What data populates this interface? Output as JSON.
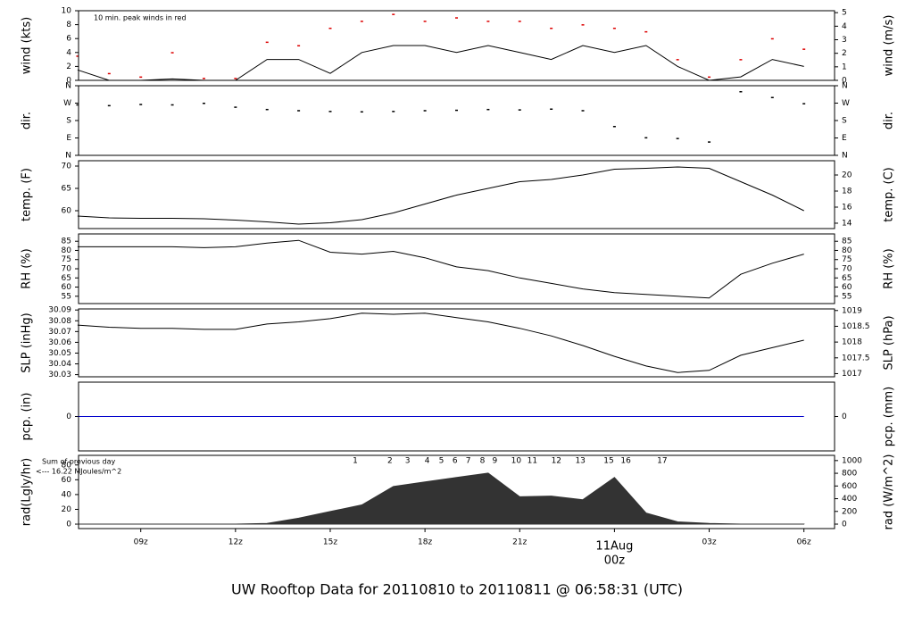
{
  "title": "UW Rooftop Data for 20110810  to  20110811 @ 06:58:31  (UTC)",
  "title_color": "#0000cc",
  "chart_data": [
    {
      "type": "line",
      "y_label": "wind (kts)",
      "y2_label": "wind (m/s)",
      "annotation": "10 min. peak winds in red",
      "annotation_color": "#dd0000",
      "xlim": [
        7.03,
        30.97
      ],
      "x": [
        7,
        8,
        9,
        10,
        11,
        12,
        13,
        14,
        15,
        16,
        17,
        18,
        19,
        20,
        21,
        22,
        23,
        24,
        25,
        26,
        27,
        28,
        29,
        30
      ],
      "series": [
        {
          "name": "wind",
          "color": "#000000",
          "style": "line",
          "values": [
            1.5,
            0,
            0,
            0.2,
            0,
            0,
            3,
            3,
            1,
            4,
            5,
            5,
            4,
            5,
            4,
            3,
            5,
            4,
            5,
            2,
            0,
            0.5,
            3,
            2
          ]
        },
        {
          "name": "peak",
          "color": "#dd0000",
          "style": "points",
          "values": [
            3.5,
            1,
            0.5,
            4,
            0.3,
            0.3,
            5.5,
            5,
            7.5,
            8.5,
            9.5,
            8.5,
            9,
            8.5,
            8.5,
            7.5,
            8,
            7.5,
            7,
            3,
            0.5,
            3,
            6,
            4.5
          ]
        }
      ],
      "ylim": [
        0,
        10
      ],
      "yticks": [
        0,
        2,
        4,
        6,
        8,
        10
      ],
      "y2lim": [
        0,
        5.144
      ],
      "y2ticks": [
        0,
        1,
        2,
        3,
        4,
        5
      ]
    },
    {
      "type": "scatter",
      "y_label": "dir.",
      "y2_label": "dir.",
      "xlim": [
        7.03,
        30.97
      ],
      "x": [
        7,
        8,
        9,
        10,
        11,
        12,
        13,
        14,
        15,
        16,
        17,
        18,
        19,
        20,
        21,
        22,
        23,
        24,
        25,
        26,
        27,
        28,
        29,
        30
      ],
      "series": [
        {
          "name": "direction",
          "color": "#000000",
          "style": "points",
          "values": [
            262,
            258,
            264,
            262,
            270,
            250,
            238,
            232,
            228,
            226,
            228,
            232,
            234,
            238,
            236,
            240,
            232,
            150,
            92,
            88,
            70,
            330,
            300,
            268
          ]
        }
      ],
      "ylim": [
        0,
        360
      ],
      "yticks": [
        {
          "value": 0,
          "label": "N"
        },
        {
          "value": 90,
          "label": "E"
        },
        {
          "value": 180,
          "label": "S"
        },
        {
          "value": 270,
          "label": "W"
        },
        {
          "value": 360,
          "label": "N"
        }
      ],
      "y2lim": [
        0,
        360
      ],
      "y2ticks": [
        {
          "value": 0,
          "label": "N"
        },
        {
          "value": 90,
          "label": "E"
        },
        {
          "value": 180,
          "label": "S"
        },
        {
          "value": 270,
          "label": "W"
        },
        {
          "value": 360,
          "label": "N"
        }
      ]
    },
    {
      "type": "line",
      "y_label": "temp. (F)",
      "y2_label": "temp. (C)",
      "xlim": [
        7.03,
        30.97
      ],
      "x": [
        7,
        8,
        9,
        10,
        11,
        12,
        13,
        14,
        15,
        16,
        17,
        18,
        19,
        20,
        21,
        22,
        23,
        24,
        25,
        26,
        27,
        28,
        29,
        30
      ],
      "series": [
        {
          "name": "temperature",
          "color": "#000000",
          "style": "line",
          "values": [
            58.8,
            58.4,
            58.3,
            58.3,
            58.2,
            57.9,
            57.5,
            57.0,
            57.3,
            58.0,
            59.5,
            61.5,
            63.5,
            65.0,
            66.5,
            67.0,
            68.0,
            69.3,
            69.5,
            69.8,
            69.5,
            66.5,
            63.5,
            60.0
          ]
        }
      ],
      "ylim": [
        56,
        71.2
      ],
      "yticks": [
        60,
        65,
        70
      ],
      "y2lim": [
        13.33,
        21.78
      ],
      "y2ticks": [
        14,
        16,
        18,
        20
      ]
    },
    {
      "type": "line",
      "y_label": "RH (%)",
      "y2_label": "RH (%)",
      "xlim": [
        7.03,
        30.97
      ],
      "x": [
        7,
        8,
        9,
        10,
        11,
        12,
        13,
        14,
        15,
        16,
        17,
        18,
        19,
        20,
        21,
        22,
        23,
        24,
        25,
        26,
        27,
        28,
        29,
        30
      ],
      "series": [
        {
          "name": "rh",
          "color": "#000000",
          "style": "line",
          "values": [
            82,
            82,
            82,
            82,
            81.5,
            82,
            84,
            85.5,
            79,
            78,
            79.5,
            76,
            71,
            69,
            65,
            62,
            59,
            57,
            56,
            55,
            54,
            67,
            73,
            78
          ]
        }
      ],
      "ylim": [
        51,
        89
      ],
      "yticks": [
        55,
        60,
        65,
        70,
        75,
        80,
        85
      ],
      "y2lim": [
        51,
        89
      ],
      "y2ticks": [
        55,
        60,
        65,
        70,
        75,
        80,
        85
      ]
    },
    {
      "type": "line",
      "y_label": "SLP (inHg)",
      "y2_label": "SLP (hPa)",
      "xlim": [
        7.03,
        30.97
      ],
      "x": [
        7,
        8,
        9,
        10,
        11,
        12,
        13,
        14,
        15,
        16,
        17,
        18,
        19,
        20,
        21,
        22,
        23,
        24,
        25,
        26,
        27,
        28,
        29,
        30
      ],
      "series": [
        {
          "name": "slp",
          "color": "#000000",
          "style": "line",
          "values": [
            30.076,
            30.074,
            30.073,
            30.073,
            30.072,
            30.072,
            30.077,
            30.079,
            30.082,
            30.087,
            30.086,
            30.087,
            30.083,
            30.079,
            30.073,
            30.066,
            30.057,
            30.047,
            30.038,
            30.032,
            30.034,
            30.048,
            30.055,
            30.062
          ]
        }
      ],
      "ylim": [
        30.028,
        30.091
      ],
      "yticks": [
        30.03,
        30.04,
        30.05,
        30.06,
        30.07,
        30.08,
        30.09
      ],
      "y2lim": [
        1016.9,
        1019.05
      ],
      "y2ticks": [
        1017,
        1017.5,
        1018,
        1018.5,
        1019
      ]
    },
    {
      "type": "line",
      "y_label": "pcp. (in)",
      "y2_label": "pcp. (mm)",
      "xlim": [
        7.03,
        30.97
      ],
      "x": [
        7,
        8,
        9,
        10,
        11,
        12,
        13,
        14,
        15,
        16,
        17,
        18,
        19,
        20,
        21,
        22,
        23,
        24,
        25,
        26,
        27,
        28,
        29,
        30
      ],
      "series": [
        {
          "name": "precipitation",
          "color": "#0000cc",
          "style": "line",
          "values": [
            0,
            0,
            0,
            0,
            0,
            0,
            0,
            0,
            0,
            0,
            0,
            0,
            0,
            0,
            0,
            0,
            0,
            0,
            0,
            0,
            0,
            0,
            0,
            0
          ]
        }
      ],
      "ylim": [
        -1,
        1
      ],
      "yticks": [
        0
      ],
      "y2lim": [
        -1,
        1
      ],
      "y2ticks": [
        0
      ]
    },
    {
      "type": "area",
      "y_label": "rad(Lgly/hr)",
      "y2_label": "rad (W/m^2)",
      "annotations": [
        "Sum of previous day",
        "<--- 16.22 MJoules/m^2"
      ],
      "annotation_color": "#9900cc",
      "markers": [
        {
          "label": "1",
          "x": 15.79
        },
        {
          "label": "2",
          "x": 16.89
        },
        {
          "label": "3",
          "x": 17.45
        },
        {
          "label": "4",
          "x": 18.07
        },
        {
          "label": "5",
          "x": 18.52
        },
        {
          "label": "6",
          "x": 18.95
        },
        {
          "label": "7",
          "x": 19.37
        },
        {
          "label": "8",
          "x": 19.82
        },
        {
          "label": "9",
          "x": 20.21
        },
        {
          "label": "10",
          "x": 20.89
        },
        {
          "label": "11",
          "x": 21.4
        },
        {
          "label": "12",
          "x": 22.16
        },
        {
          "label": "13",
          "x": 22.92
        },
        {
          "label": "15",
          "x": 23.82
        },
        {
          "label": "16",
          "x": 24.36
        },
        {
          "label": "17",
          "x": 25.51
        }
      ],
      "marker_color": "#9900cc",
      "xlim": [
        7.03,
        30.97
      ],
      "x": [
        7,
        8,
        9,
        10,
        11,
        12,
        13,
        14,
        15,
        16,
        17,
        18,
        19,
        20,
        21,
        22,
        23,
        24,
        25,
        26,
        27,
        28,
        29,
        30
      ],
      "series": [
        {
          "name": "radiation",
          "color": "#333333",
          "style": "area",
          "values": [
            0,
            0,
            0,
            0,
            0,
            0,
            1,
            8,
            17,
            26,
            51,
            57,
            63,
            69,
            37,
            38,
            33,
            63,
            15,
            3,
            1,
            0,
            0,
            0
          ]
        }
      ],
      "ylim": [
        -6,
        93
      ],
      "yticks": [
        0,
        20,
        40,
        60,
        80
      ],
      "y2lim": [
        -70,
        1082
      ],
      "y2ticks": [
        0,
        200,
        400,
        600,
        800,
        1000
      ],
      "xticks": [
        {
          "value": 9,
          "label": "09z"
        },
        {
          "value": 12,
          "label": "12z"
        },
        {
          "value": 15,
          "label": "15z"
        },
        {
          "value": 18,
          "label": "18z"
        },
        {
          "value": 21,
          "label": "21z"
        },
        {
          "value": 24,
          "label": "00z"
        },
        {
          "value": 27,
          "label": "03z"
        },
        {
          "value": 30,
          "label": "06z"
        }
      ],
      "day_label": {
        "value": 24,
        "label": "11Aug"
      },
      "day_color": "#dd0000"
    }
  ]
}
